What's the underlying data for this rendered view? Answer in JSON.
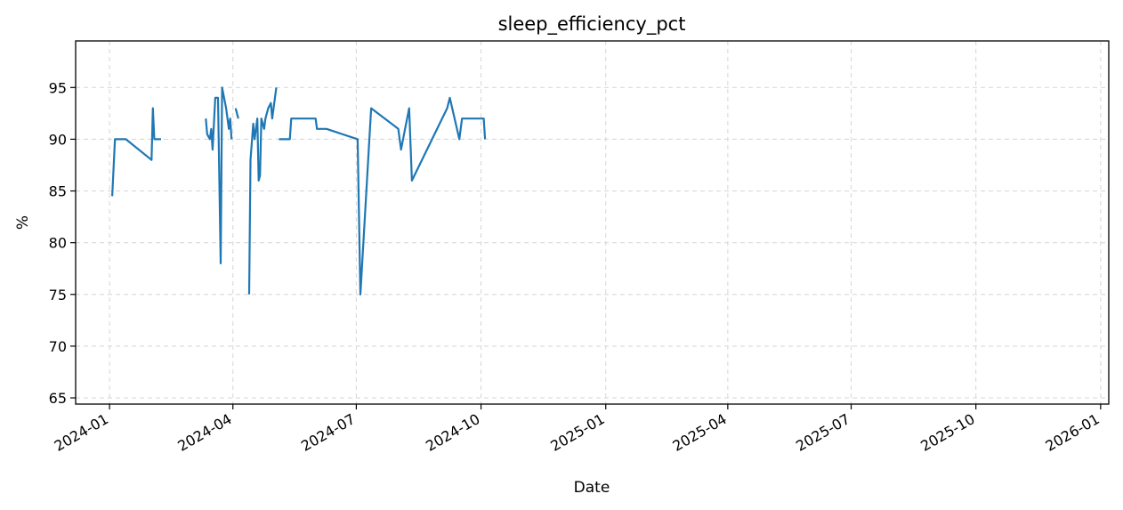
{
  "chart_data": {
    "type": "line",
    "title": "sleep_efficiency_pct",
    "xlabel": "Date",
    "ylabel": "%",
    "xlim": [
      "2023-12-07",
      "2026-01-07"
    ],
    "ylim": [
      64.4,
      99.5
    ],
    "x_ticks": [
      "2024-01",
      "2024-04",
      "2024-07",
      "2024-10",
      "2025-01",
      "2025-04",
      "2025-07",
      "2025-10",
      "2026-01"
    ],
    "y_ticks": [
      65,
      70,
      75,
      80,
      85,
      90,
      95
    ],
    "grid": true,
    "line_color": "#1f77b4",
    "segments": [
      [
        [
          "2024-01-03",
          84.5
        ],
        [
          "2024-01-05",
          90
        ],
        [
          "2024-01-11",
          90
        ],
        [
          "2024-01-13",
          90
        ],
        [
          "2024-02-01",
          88
        ],
        [
          "2024-02-02",
          93
        ],
        [
          "2024-02-03",
          90
        ],
        [
          "2024-02-08",
          90
        ]
      ],
      [
        [
          "2024-03-12",
          92
        ],
        [
          "2024-03-13",
          90.5
        ],
        [
          "2024-03-15",
          90
        ],
        [
          "2024-03-16",
          91
        ],
        [
          "2024-03-17",
          89
        ],
        [
          "2024-03-19",
          94
        ],
        [
          "2024-03-21",
          94
        ],
        [
          "2024-03-23",
          78
        ],
        [
          "2024-03-24",
          95
        ],
        [
          "2024-03-27",
          93
        ],
        [
          "2024-03-29",
          91
        ],
        [
          "2024-03-30",
          92
        ],
        [
          "2024-03-31",
          90
        ]
      ],
      [
        [
          "2024-04-03",
          93
        ],
        [
          "2024-04-05",
          92
        ]
      ],
      [
        [
          "2024-04-13",
          75
        ],
        [
          "2024-04-14",
          88
        ],
        [
          "2024-04-16",
          91.5
        ],
        [
          "2024-04-17",
          90
        ],
        [
          "2024-04-19",
          92
        ],
        [
          "2024-04-20",
          86
        ],
        [
          "2024-04-21",
          86.5
        ],
        [
          "2024-04-22",
          92
        ],
        [
          "2024-04-24",
          91
        ],
        [
          "2024-04-25",
          92
        ],
        [
          "2024-04-27",
          93
        ],
        [
          "2024-04-29",
          93.5
        ],
        [
          "2024-04-30",
          92
        ],
        [
          "2024-05-03",
          95
        ]
      ],
      [
        [
          "2024-05-05",
          90
        ],
        [
          "2024-05-13",
          90
        ],
        [
          "2024-05-14",
          92
        ],
        [
          "2024-05-29",
          92
        ],
        [
          "2024-06-01",
          92
        ],
        [
          "2024-06-02",
          91
        ],
        [
          "2024-06-09",
          91
        ],
        [
          "2024-07-02",
          90
        ],
        [
          "2024-07-04",
          75
        ],
        [
          "2024-07-12",
          93
        ],
        [
          "2024-08-01",
          91
        ],
        [
          "2024-08-03",
          89
        ],
        [
          "2024-08-06",
          91
        ],
        [
          "2024-08-09",
          93
        ],
        [
          "2024-08-11",
          86
        ],
        [
          "2024-09-06",
          93
        ],
        [
          "2024-09-08",
          94
        ],
        [
          "2024-09-15",
          90
        ],
        [
          "2024-09-17",
          92
        ],
        [
          "2024-10-01",
          92
        ],
        [
          "2024-10-03",
          92
        ],
        [
          "2024-10-04",
          90
        ]
      ]
    ]
  }
}
